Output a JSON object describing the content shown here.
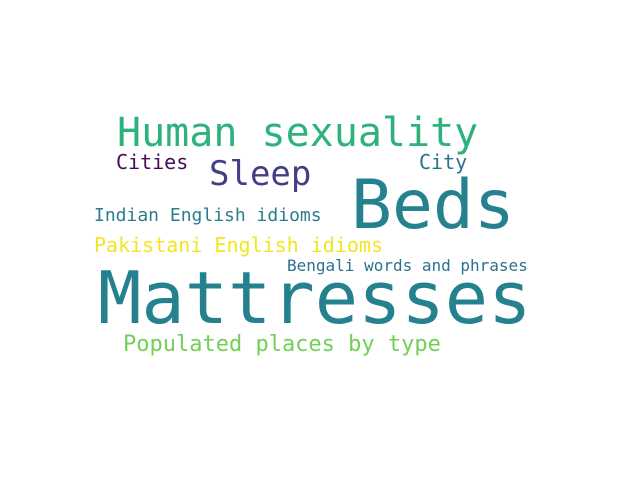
{
  "words": [
    {
      "key": "mattresses",
      "text": "Mattresses",
      "color": "#26818e"
    },
    {
      "key": "beds",
      "text": "Beds",
      "color": "#26818e"
    },
    {
      "key": "human",
      "text": "Human sexuality",
      "color": "#2db27d"
    },
    {
      "key": "sleep",
      "text": "Sleep",
      "color": "#433e85"
    },
    {
      "key": "cities",
      "text": "Cities",
      "color": "#440e57"
    },
    {
      "key": "city",
      "text": "City",
      "color": "#2c728e"
    },
    {
      "key": "indian",
      "text": "Indian English idioms",
      "color": "#2b7c8e"
    },
    {
      "key": "pakistani",
      "text": "Pakistani English idioms",
      "color": "#f4e61e"
    },
    {
      "key": "bengali",
      "text": "Bengali words and phrases",
      "color": "#2c718e"
    },
    {
      "key": "populated",
      "text": "Populated places by type",
      "color": "#72d056"
    }
  ]
}
